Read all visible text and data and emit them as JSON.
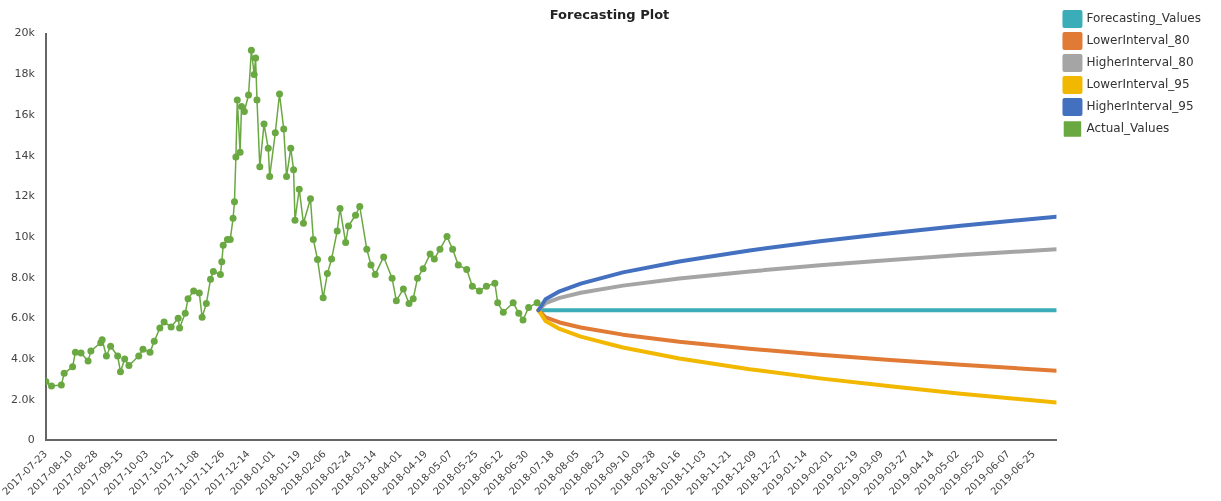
{
  "chart_data": {
    "type": "line",
    "title": "Forecasting Plot",
    "legend": "top right",
    "grid": false,
    "line_style": "solid",
    "xlim": [
      "2017-07-23",
      "2019-07-11"
    ],
    "xticks": [
      "2017-07-23",
      "2017-08-10",
      "2017-08-28",
      "2017-09-15",
      "2017-10-03",
      "2017-10-21",
      "2017-11-08",
      "2017-11-26",
      "2017-12-14",
      "2018-01-01",
      "2018-01-19",
      "2018-02-06",
      "2018-02-24",
      "2018-03-14",
      "2018-04-01",
      "2018-04-19",
      "2018-05-07",
      "2018-05-25",
      "2018-06-12",
      "2018-06-30",
      "2018-07-18",
      "2018-08-05",
      "2018-08-23",
      "2018-09-10",
      "2018-09-28",
      "2018-10-16",
      "2018-11-03",
      "2018-11-21",
      "2018-12-09",
      "2018-12-27",
      "2019-01-14",
      "2019-02-01",
      "2019-02-19",
      "2019-03-09",
      "2019-03-27",
      "2019-04-14",
      "2019-05-02",
      "2019-05-20",
      "2019-06-07",
      "2019-06-25"
    ],
    "ylim": [
      0,
      20000
    ],
    "yticks": [
      0,
      {
        "value": 2000,
        "label": "2.0k"
      },
      {
        "value": 4000,
        "label": "4.0k"
      },
      {
        "value": 6000,
        "label": "6.0k"
      },
      {
        "value": 8000,
        "label": "8.0k"
      },
      {
        "value": 10000,
        "label": "10k"
      },
      {
        "value": 12000,
        "label": "12k"
      },
      {
        "value": 14000,
        "label": "14k"
      },
      {
        "value": 16000,
        "label": "16k"
      },
      {
        "value": 18000,
        "label": "18k"
      },
      {
        "value": 20000,
        "label": "20k"
      }
    ],
    "series": [
      {
        "name": "Forecasting_Values",
        "color": "#3aadb8",
        "marker": "none",
        "x": [
          "2018-07-08",
          "2018-07-13",
          "2018-07-23",
          "2018-08-07",
          "2018-09-06",
          "2018-10-16",
          "2018-12-05",
          "2019-01-24",
          "2019-03-15",
          "2019-05-04",
          "2019-07-11"
        ],
        "values": [
          6400,
          6400,
          6400,
          6400,
          6400,
          6400,
          6400,
          6400,
          6400,
          6400,
          6400
        ]
      },
      {
        "name": "LowerInterval_80",
        "color": "#e07a35",
        "marker": "none",
        "x": [
          "2018-07-08",
          "2018-07-13",
          "2018-07-23",
          "2018-08-07",
          "2018-09-06",
          "2018-10-16",
          "2018-12-05",
          "2019-01-24",
          "2019-03-15",
          "2019-05-04",
          "2019-07-11"
        ],
        "values": [
          6400,
          6050,
          5800,
          5550,
          5200,
          4850,
          4510,
          4210,
          3950,
          3720,
          3430
        ]
      },
      {
        "name": "HigherInterval_80",
        "color": "#a5a5a5",
        "marker": "none",
        "x": [
          "2018-07-08",
          "2018-07-13",
          "2018-07-23",
          "2018-08-07",
          "2018-09-06",
          "2018-10-16",
          "2018-12-05",
          "2019-01-24",
          "2019-03-15",
          "2019-05-04",
          "2019-07-11"
        ],
        "values": [
          6400,
          6750,
          7010,
          7260,
          7610,
          7960,
          8310,
          8610,
          8870,
          9110,
          9400
        ]
      },
      {
        "name": "LowerInterval_95",
        "color": "#f2b800",
        "marker": "none",
        "x": [
          "2018-07-08",
          "2018-07-13",
          "2018-07-23",
          "2018-08-07",
          "2018-09-06",
          "2018-10-16",
          "2018-12-05",
          "2019-01-24",
          "2019-03-15",
          "2019-05-04",
          "2019-07-11"
        ],
        "values": [
          6400,
          5870,
          5480,
          5100,
          4570,
          4030,
          3500,
          3050,
          2660,
          2300,
          1860
        ]
      },
      {
        "name": "HigherInterval_95",
        "color": "#4470c0",
        "marker": "none",
        "x": [
          "2018-07-08",
          "2018-07-13",
          "2018-07-23",
          "2018-08-07",
          "2018-09-06",
          "2018-10-16",
          "2018-12-05",
          "2019-01-24",
          "2019-03-15",
          "2019-05-04",
          "2019-07-11"
        ],
        "values": [
          6400,
          6940,
          7330,
          7710,
          8260,
          8800,
          9340,
          9790,
          10190,
          10550,
          11000
        ]
      },
      {
        "name": "Actual_Values",
        "color": "#6aa842",
        "marker": "circle",
        "x": [
          "2017-07-23",
          "2017-07-27",
          "2017-08-03",
          "2017-08-05",
          "2017-08-11",
          "2017-08-13",
          "2017-08-17",
          "2017-08-22",
          "2017-08-24",
          "2017-08-31",
          "2017-09-01",
          "2017-09-04",
          "2017-09-07",
          "2017-09-12",
          "2017-09-14",
          "2017-09-17",
          "2017-09-20",
          "2017-09-27",
          "2017-09-30",
          "2017-10-05",
          "2017-10-08",
          "2017-10-12",
          "2017-10-15",
          "2017-10-20",
          "2017-10-25",
          "2017-10-26",
          "2017-10-30",
          "2017-11-01",
          "2017-11-05",
          "2017-11-09",
          "2017-11-11",
          "2017-11-14",
          "2017-11-17",
          "2017-11-19",
          "2017-11-24",
          "2017-11-25",
          "2017-11-26",
          "2017-11-29",
          "2017-12-01",
          "2017-12-03",
          "2017-12-04",
          "2017-12-05",
          "2017-12-06",
          "2017-12-08",
          "2017-12-09",
          "2017-12-11",
          "2017-12-14",
          "2017-12-16",
          "2017-12-18",
          "2017-12-19",
          "2017-12-20",
          "2017-12-22",
          "2017-12-25",
          "2017-12-28",
          "2017-12-29",
          "2018-01-02",
          "2018-01-05",
          "2018-01-08",
          "2018-01-10",
          "2018-01-13",
          "2018-01-15",
          "2018-01-16",
          "2018-01-19",
          "2018-01-22",
          "2018-01-27",
          "2018-01-29",
          "2018-02-01",
          "2018-02-05",
          "2018-02-08",
          "2018-02-11",
          "2018-02-15",
          "2018-02-17",
          "2018-02-21",
          "2018-02-23",
          "2018-02-28",
          "2018-03-03",
          "2018-03-08",
          "2018-03-11",
          "2018-03-14",
          "2018-03-20",
          "2018-03-26",
          "2018-03-29",
          "2018-04-03",
          "2018-04-07",
          "2018-04-10",
          "2018-04-13",
          "2018-04-17",
          "2018-04-22",
          "2018-04-25",
          "2018-04-29",
          "2018-05-04",
          "2018-05-08",
          "2018-05-12",
          "2018-05-18",
          "2018-05-22",
          "2018-05-27",
          "2018-06-01",
          "2018-06-07",
          "2018-06-09",
          "2018-06-13",
          "2018-06-20",
          "2018-06-24",
          "2018-06-27",
          "2018-07-01",
          "2018-07-07"
        ],
        "values": [
          2900,
          2670,
          2720,
          3300,
          3620,
          4340,
          4300,
          3900,
          4400,
          4800,
          4950,
          4150,
          4630,
          4150,
          3380,
          4000,
          3680,
          4150,
          4480,
          4340,
          4870,
          5530,
          5820,
          5580,
          6010,
          5530,
          6250,
          6960,
          7350,
          7250,
          6060,
          6730,
          7920,
          8300,
          8160,
          8780,
          9590,
          9880,
          9880,
          10920,
          11730,
          13930,
          16740,
          14170,
          16410,
          16170,
          16980,
          19180,
          17990,
          18800,
          16740,
          13450,
          15550,
          14360,
          12970,
          15120,
          17030,
          15310,
          12970,
          14360,
          13310,
          10830,
          12350,
          10680,
          11880,
          9880,
          8900,
          7010,
          8200,
          8920,
          10300,
          11400,
          9730,
          10540,
          11070,
          11500,
          9400,
          8630,
          8160,
          9020,
          7970,
          6870,
          7440,
          6730,
          6960,
          7970,
          8440,
          9160,
          8920,
          9400,
          10020,
          9400,
          8630,
          8400,
          7580,
          7350,
          7580,
          7730,
          6770,
          6300,
          6770,
          6250,
          5920,
          6540,
          6770
        ]
      }
    ]
  }
}
